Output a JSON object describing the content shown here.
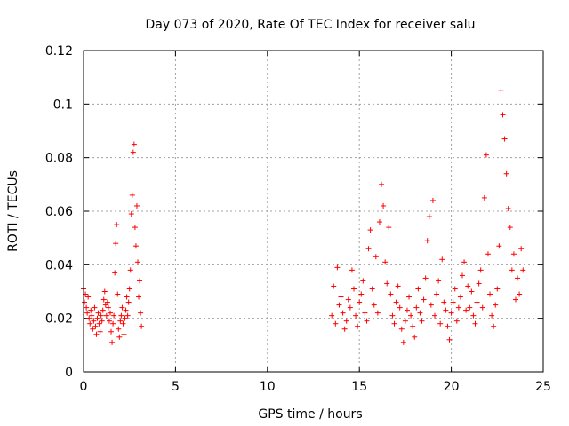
{
  "chart_data": {
    "type": "scatter",
    "title": "Day 073 of 2020, Rate Of TEC Index for receiver salu",
    "xlabel": "GPS time / hours",
    "ylabel": "ROTI / TECUs",
    "xlim": [
      0,
      25
    ],
    "ylim": [
      0,
      0.12
    ],
    "xticks": [
      0,
      5,
      10,
      15,
      20,
      25
    ],
    "xtick_labels": [
      "0",
      "5",
      "10",
      "15",
      "20",
      "25"
    ],
    "yticks": [
      0,
      0.02,
      0.04,
      0.06,
      0.08,
      0.1,
      0.12
    ],
    "ytick_labels": [
      "0",
      "0.02",
      "0.04",
      "0.06",
      "0.08",
      "0.1",
      "0.12"
    ],
    "grid": true,
    "marker": "+",
    "marker_color": "#ff0000",
    "series": [
      {
        "name": "ROTI",
        "points": [
          [
            0.0,
            0.031
          ],
          [
            0.05,
            0.026
          ],
          [
            0.1,
            0.029
          ],
          [
            0.15,
            0.024
          ],
          [
            0.2,
            0.022
          ],
          [
            0.25,
            0.028
          ],
          [
            0.3,
            0.02
          ],
          [
            0.35,
            0.018
          ],
          [
            0.4,
            0.023
          ],
          [
            0.45,
            0.021
          ],
          [
            0.5,
            0.016
          ],
          [
            0.55,
            0.019
          ],
          [
            0.6,
            0.024
          ],
          [
            0.65,
            0.017
          ],
          [
            0.7,
            0.014
          ],
          [
            0.75,
            0.02
          ],
          [
            0.8,
            0.022
          ],
          [
            0.85,
            0.018
          ],
          [
            0.9,
            0.015
          ],
          [
            0.95,
            0.021
          ],
          [
            1.0,
            0.019
          ],
          [
            1.05,
            0.023
          ],
          [
            1.1,
            0.027
          ],
          [
            1.15,
            0.03
          ],
          [
            1.2,
            0.025
          ],
          [
            1.25,
            0.021
          ],
          [
            1.3,
            0.026
          ],
          [
            1.35,
            0.024
          ],
          [
            1.4,
            0.019
          ],
          [
            1.45,
            0.022
          ],
          [
            1.5,
            0.015
          ],
          [
            1.55,
            0.011
          ],
          [
            1.6,
            0.018
          ],
          [
            1.65,
            0.021
          ],
          [
            1.7,
            0.037
          ],
          [
            1.75,
            0.048
          ],
          [
            1.8,
            0.055
          ],
          [
            1.85,
            0.029
          ],
          [
            1.9,
            0.016
          ],
          [
            1.95,
            0.013
          ],
          [
            2.0,
            0.019
          ],
          [
            2.05,
            0.021
          ],
          [
            2.1,
            0.024
          ],
          [
            2.15,
            0.018
          ],
          [
            2.2,
            0.014
          ],
          [
            2.25,
            0.02
          ],
          [
            2.3,
            0.023
          ],
          [
            2.35,
            0.028
          ],
          [
            2.4,
            0.021
          ],
          [
            2.45,
            0.026
          ],
          [
            2.5,
            0.031
          ],
          [
            2.55,
            0.038
          ],
          [
            2.6,
            0.059
          ],
          [
            2.65,
            0.066
          ],
          [
            2.7,
            0.082
          ],
          [
            2.75,
            0.085
          ],
          [
            2.8,
            0.054
          ],
          [
            2.85,
            0.047
          ],
          [
            2.9,
            0.062
          ],
          [
            2.95,
            0.041
          ],
          [
            3.0,
            0.028
          ],
          [
            3.05,
            0.034
          ],
          [
            3.1,
            0.022
          ],
          [
            3.15,
            0.017
          ],
          [
            13.5,
            0.021
          ],
          [
            13.6,
            0.032
          ],
          [
            13.7,
            0.018
          ],
          [
            13.8,
            0.039
          ],
          [
            13.9,
            0.025
          ],
          [
            14.0,
            0.028
          ],
          [
            14.1,
            0.022
          ],
          [
            14.2,
            0.016
          ],
          [
            14.3,
            0.019
          ],
          [
            14.4,
            0.027
          ],
          [
            14.5,
            0.024
          ],
          [
            14.6,
            0.038
          ],
          [
            14.7,
            0.031
          ],
          [
            14.8,
            0.021
          ],
          [
            14.9,
            0.017
          ],
          [
            15.0,
            0.026
          ],
          [
            15.1,
            0.029
          ],
          [
            15.2,
            0.034
          ],
          [
            15.3,
            0.022
          ],
          [
            15.4,
            0.019
          ],
          [
            15.5,
            0.046
          ],
          [
            15.6,
            0.053
          ],
          [
            15.7,
            0.031
          ],
          [
            15.8,
            0.025
          ],
          [
            15.9,
            0.043
          ],
          [
            16.0,
            0.022
          ],
          [
            16.1,
            0.056
          ],
          [
            16.2,
            0.07
          ],
          [
            16.3,
            0.062
          ],
          [
            16.4,
            0.041
          ],
          [
            16.5,
            0.033
          ],
          [
            16.6,
            0.054
          ],
          [
            16.7,
            0.029
          ],
          [
            16.8,
            0.021
          ],
          [
            16.9,
            0.018
          ],
          [
            17.0,
            0.026
          ],
          [
            17.1,
            0.032
          ],
          [
            17.2,
            0.024
          ],
          [
            17.3,
            0.016
          ],
          [
            17.4,
            0.011
          ],
          [
            17.5,
            0.019
          ],
          [
            17.6,
            0.023
          ],
          [
            17.7,
            0.028
          ],
          [
            17.8,
            0.021
          ],
          [
            17.9,
            0.017
          ],
          [
            18.0,
            0.013
          ],
          [
            18.1,
            0.024
          ],
          [
            18.2,
            0.031
          ],
          [
            18.3,
            0.022
          ],
          [
            18.4,
            0.019
          ],
          [
            18.5,
            0.027
          ],
          [
            18.6,
            0.035
          ],
          [
            18.7,
            0.049
          ],
          [
            18.8,
            0.058
          ],
          [
            18.9,
            0.025
          ],
          [
            19.0,
            0.064
          ],
          [
            19.1,
            0.021
          ],
          [
            19.2,
            0.029
          ],
          [
            19.3,
            0.034
          ],
          [
            19.4,
            0.018
          ],
          [
            19.5,
            0.042
          ],
          [
            19.6,
            0.026
          ],
          [
            19.7,
            0.023
          ],
          [
            19.8,
            0.017
          ],
          [
            19.9,
            0.012
          ],
          [
            20.0,
            0.022
          ],
          [
            20.1,
            0.026
          ],
          [
            20.2,
            0.031
          ],
          [
            20.3,
            0.019
          ],
          [
            20.4,
            0.024
          ],
          [
            20.5,
            0.028
          ],
          [
            20.6,
            0.036
          ],
          [
            20.7,
            0.041
          ],
          [
            20.8,
            0.023
          ],
          [
            20.9,
            0.032
          ],
          [
            21.0,
            0.024
          ],
          [
            21.1,
            0.03
          ],
          [
            21.2,
            0.021
          ],
          [
            21.3,
            0.018
          ],
          [
            21.4,
            0.026
          ],
          [
            21.5,
            0.033
          ],
          [
            21.6,
            0.038
          ],
          [
            21.7,
            0.024
          ],
          [
            21.8,
            0.065
          ],
          [
            21.9,
            0.081
          ],
          [
            22.0,
            0.044
          ],
          [
            22.1,
            0.029
          ],
          [
            22.2,
            0.021
          ],
          [
            22.3,
            0.017
          ],
          [
            22.4,
            0.025
          ],
          [
            22.5,
            0.031
          ],
          [
            22.6,
            0.047
          ],
          [
            22.7,
            0.105
          ],
          [
            22.8,
            0.096
          ],
          [
            22.9,
            0.087
          ],
          [
            23.0,
            0.074
          ],
          [
            23.1,
            0.061
          ],
          [
            23.2,
            0.054
          ],
          [
            23.3,
            0.038
          ],
          [
            23.4,
            0.044
          ],
          [
            23.5,
            0.027
          ],
          [
            23.6,
            0.035
          ],
          [
            23.7,
            0.029
          ],
          [
            23.8,
            0.046
          ],
          [
            23.9,
            0.038
          ]
        ]
      }
    ]
  }
}
